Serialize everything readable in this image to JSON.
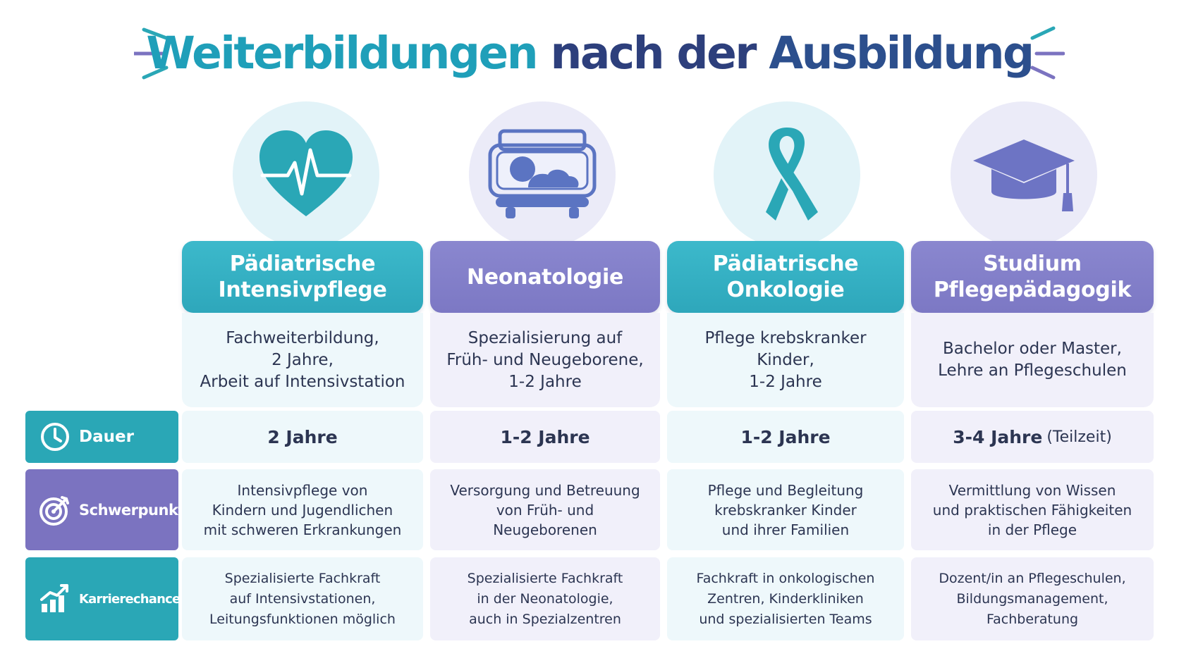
{
  "title": {
    "part1": "Weiterbildungen",
    "part2": "nach der",
    "part3": "Ausbildung"
  },
  "colors": {
    "teal": "#2ea7bb",
    "purple": "#7c78c4",
    "title_teal": "#1f9fb9",
    "title_navy": "#2d3f7c"
  },
  "columns": [
    {
      "icon": "heart-pulse-icon",
      "header_line1": "Pädiatrische",
      "header_line2": "Intensivpflege",
      "description": "Fachweiterbildung,\n2 Jahre,\nArbeit auf Intensivstation",
      "dauer": "2 Jahre",
      "dauer_suffix": "",
      "schwerpunkt": "Intensivpflege von\nKindern und Jugendlichen\nmit schweren Erkrankungen",
      "karriere": "Spezialisierte Fachkraft\nauf Intensivstationen,\nLeitungsfunktionen möglich"
    },
    {
      "icon": "incubator-icon",
      "header_line1": "Neonatologie",
      "header_line2": "",
      "description": "Spezialisierung auf\nFrüh- und Neugeborene,\n1-2 Jahre",
      "dauer": "1-2 Jahre",
      "dauer_suffix": "",
      "schwerpunkt": "Versorgung und Betreuung\nvon Früh- und\nNeugeborenen",
      "karriere": "Spezialisierte Fachkraft\nin der Neonatologie,\nauch in Spezialzentren"
    },
    {
      "icon": "awareness-ribbon-icon",
      "header_line1": "Pädiatrische",
      "header_line2": "Onkologie",
      "description": "Pflege krebskranker\nKinder,\n1-2 Jahre",
      "dauer": "1-2 Jahre",
      "dauer_suffix": "",
      "schwerpunkt": "Pflege und Begleitung\nkrebskranker Kinder\nund ihrer Familien",
      "karriere": "Fachkraft in onkologischen\nZentren, Kinderkliniken\nund spezialisierten Teams"
    },
    {
      "icon": "graduation-cap-icon",
      "header_line1": "Studium",
      "header_line2": "Pflegepädagogik",
      "description": "Bachelor oder Master,\nLehre an Pflegeschulen",
      "dauer": "3-4 Jahre",
      "dauer_suffix": "(Teilzeit)",
      "schwerpunkt": "Vermittlung von Wissen\nund praktischen Fähigkeiten\nin der Pflege",
      "karriere": "Dozent/in an Pflegeschulen,\nBildungsmanagement,\nFachberatung"
    }
  ],
  "rows": {
    "dauer": {
      "label": "Dauer",
      "icon": "clock-icon"
    },
    "schwerpunkt": {
      "label": "Schwerpunkt",
      "icon": "target-icon"
    },
    "karriere": {
      "label": "Karrierechancen",
      "icon": "growth-chart-icon"
    }
  }
}
